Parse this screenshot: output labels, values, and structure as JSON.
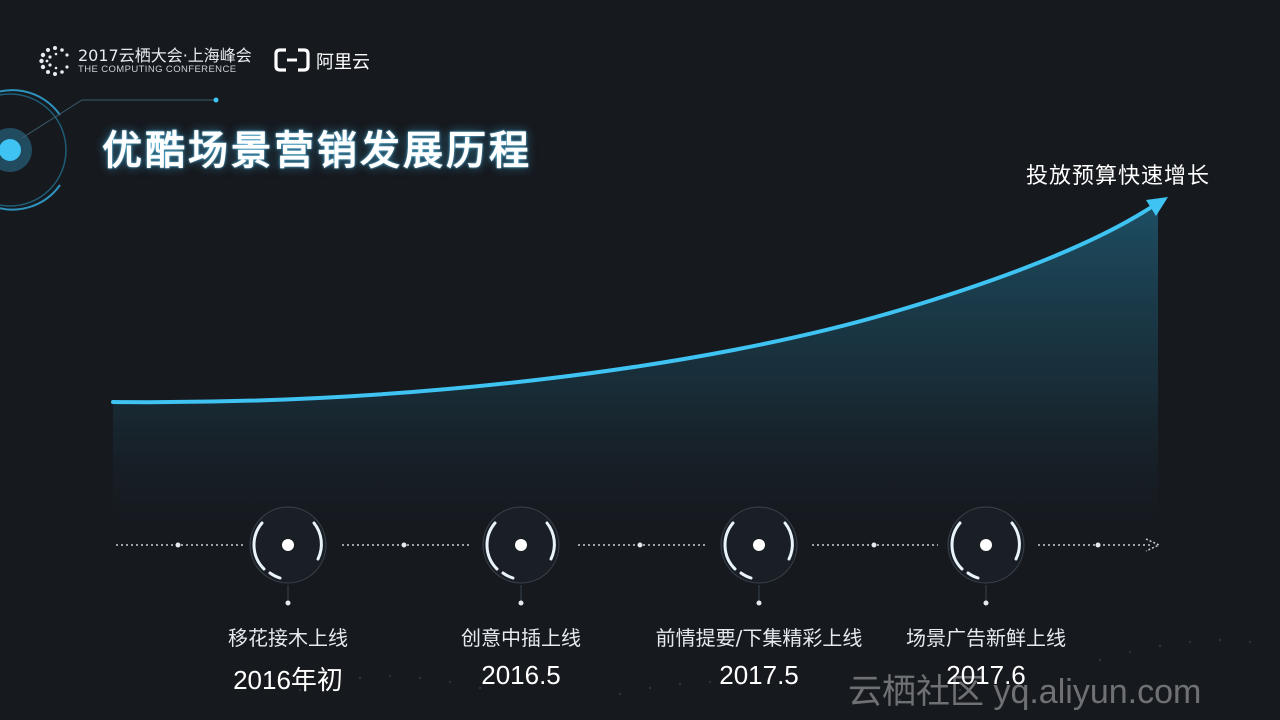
{
  "header": {
    "conference_title": "2017云栖大会·上海峰会",
    "conference_subtitle": "THE COMPUTING CONFERENCE",
    "brand_name": "阿里云"
  },
  "slide": {
    "title": "优酷场景营销发展历程",
    "growth_label": "投放预算快速增长"
  },
  "milestones": [
    {
      "label": "移花接木上线",
      "date": "2016年初"
    },
    {
      "label": "创意中插上线",
      "date": "2016.5"
    },
    {
      "label": "前情提要/下集精彩上线",
      "date": "2017.5"
    },
    {
      "label": "场景广告新鲜上线",
      "date": "2017.6"
    }
  ],
  "watermark": "云栖社区 yq.aliyun.com",
  "colors": {
    "background": "#16191e",
    "accent": "#3ec3f2",
    "title_glow": "#50c8ff"
  },
  "icons": [
    "conference-logo-icon",
    "aliyun-logo-icon",
    "target-ring-icon",
    "growth-arrow-icon"
  ]
}
